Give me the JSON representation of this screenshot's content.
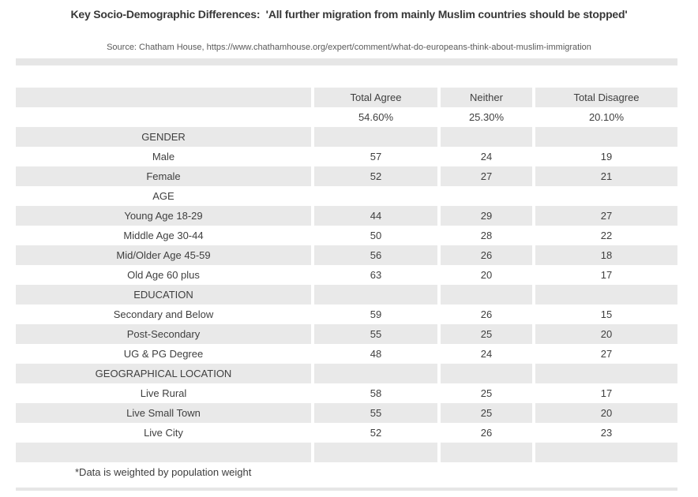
{
  "header": {
    "title": "Key Socio-Demographic Differences:  'All further migration from mainly Muslim countries should be stopped'",
    "source": "Source: Chatham House, https://www.chathamhouse.org/expert/comment/what-do-europeans-think-about-muslim-immigration"
  },
  "footnote": "*Data is weighted by population weight",
  "colors": {
    "row_stripe": "#e9e9e9",
    "divider": "#e6e6e6",
    "text": "#3d3d3d"
  },
  "chart_data": {
    "type": "table",
    "title": "Key Socio-Demographic Differences: 'All further migration from mainly Muslim countries should be stopped'",
    "columns": [
      "Total Agree",
      "Neither",
      "Total Disagree"
    ],
    "overall_values": [
      "54.60%",
      "25.30%",
      "20.10%"
    ],
    "sections": [
      {
        "name": "GENDER",
        "rows": [
          {
            "label": "Male",
            "values": [
              57,
              24,
              19
            ]
          },
          {
            "label": "Female",
            "values": [
              52,
              27,
              21
            ]
          }
        ]
      },
      {
        "name": "AGE",
        "rows": [
          {
            "label": "Young Age 18-29",
            "values": [
              44,
              29,
              27
            ]
          },
          {
            "label": "Middle Age 30-44",
            "values": [
              50,
              28,
              22
            ]
          },
          {
            "label": "Mid/Older Age 45-59",
            "values": [
              56,
              26,
              18
            ]
          },
          {
            "label": "Old Age 60 plus",
            "values": [
              63,
              20,
              17
            ]
          }
        ]
      },
      {
        "name": "EDUCATION",
        "rows": [
          {
            "label": "Secondary and Below",
            "values": [
              59,
              26,
              15
            ]
          },
          {
            "label": "Post-Secondary",
            "values": [
              55,
              25,
              20
            ]
          },
          {
            "label": "UG & PG Degree",
            "values": [
              48,
              24,
              27
            ]
          }
        ]
      },
      {
        "name": "GEOGRAPHICAL LOCATION",
        "rows": [
          {
            "label": "Live Rural",
            "values": [
              58,
              25,
              17
            ]
          },
          {
            "label": "Live Small Town",
            "values": [
              55,
              25,
              20
            ]
          },
          {
            "label": "Live City",
            "values": [
              52,
              26,
              23
            ]
          }
        ]
      }
    ],
    "footnote": "*Data is weighted by population weight",
    "layout": {
      "stripe_pattern": "alternating starting gray at header row",
      "trailing_empty_row": true
    }
  }
}
